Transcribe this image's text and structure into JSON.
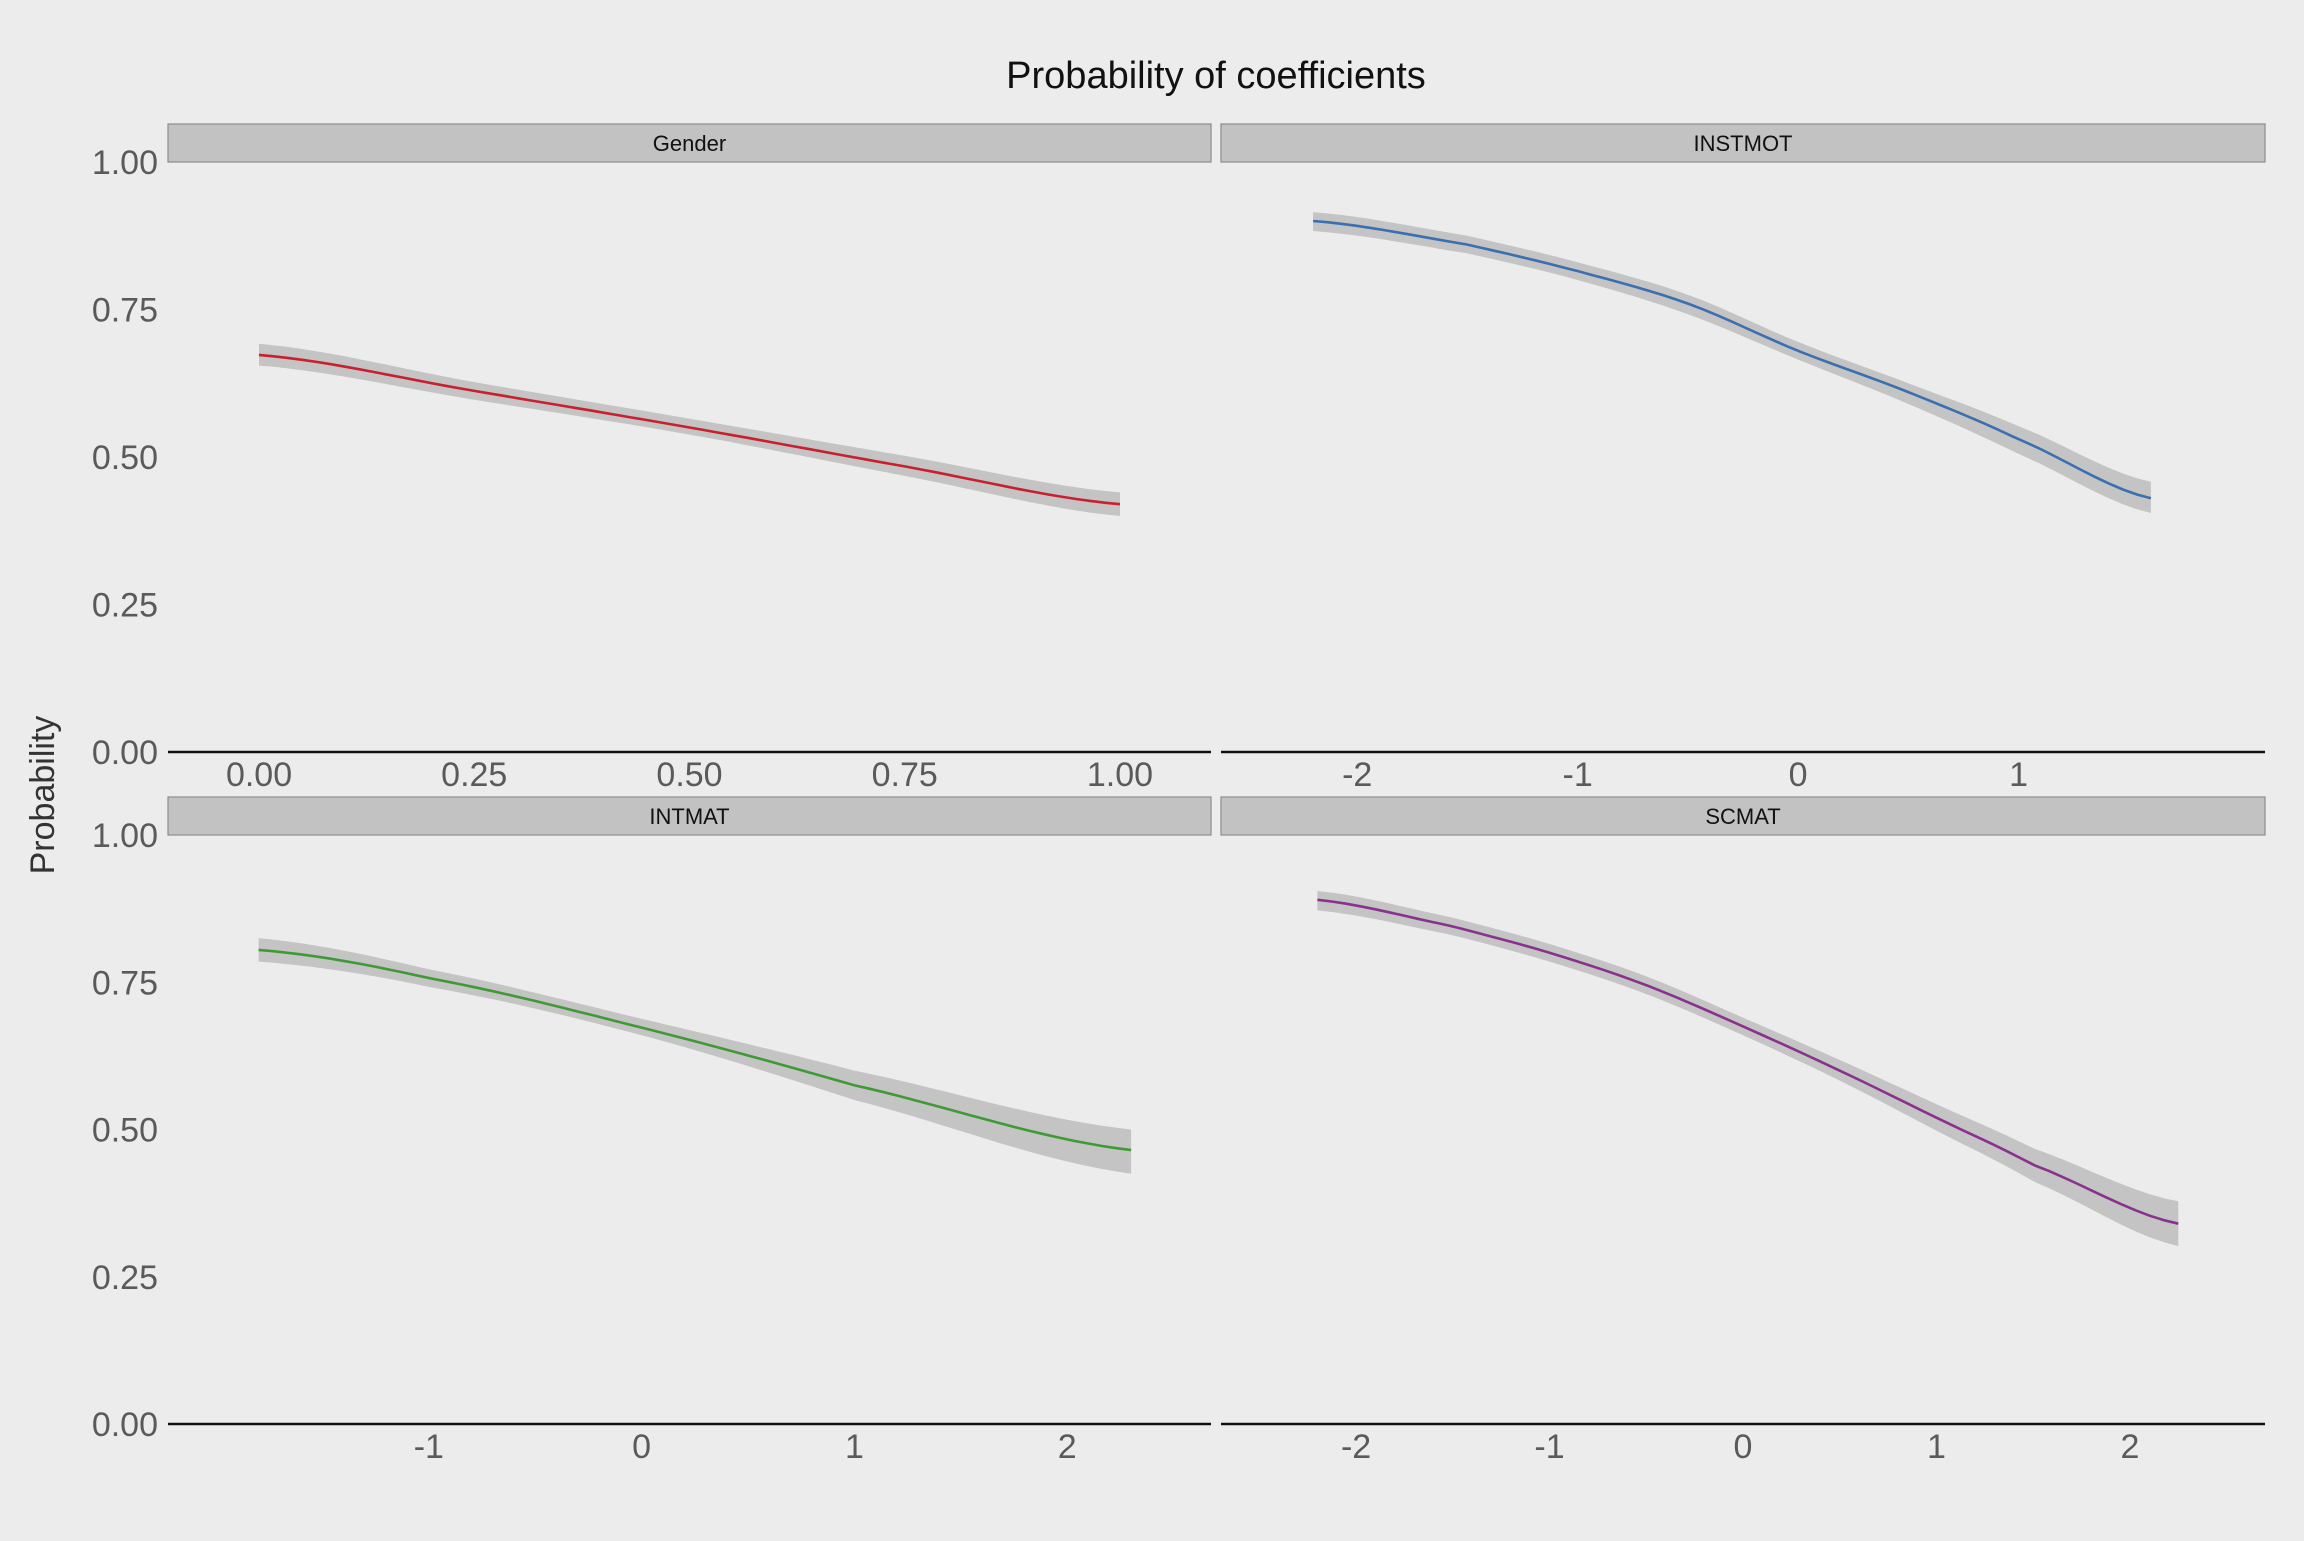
{
  "chart_data": {
    "type": "line",
    "title": "Probability of coefficients",
    "ylabel": "Probability",
    "xlabel": "",
    "ylim": [
      0,
      1
    ],
    "y_ticks": [
      "0.00",
      "0.25",
      "0.50",
      "0.75",
      "1.00"
    ],
    "y_tick_values": [
      0,
      0.25,
      0.5,
      0.75,
      1.0
    ],
    "grid": false,
    "legend": "none",
    "band_color": "#c4c4c4",
    "panels": [
      {
        "label": "Gender",
        "color": "#c8202c",
        "xlim": [
          -0.05,
          1.05
        ],
        "x_ticks": [
          "0.00",
          "0.25",
          "0.50",
          "0.75",
          "1.00"
        ],
        "x_tick_values": [
          0,
          0.25,
          0.5,
          0.75,
          1.0
        ],
        "x": [
          0,
          0.25,
          0.5,
          0.75,
          1.0
        ],
        "y": [
          0.673,
          0.612,
          0.55,
          0.484,
          0.42
        ],
        "lower": [
          0.655,
          0.597,
          0.538,
          0.468,
          0.4
        ],
        "upper": [
          0.692,
          0.627,
          0.565,
          0.502,
          0.44
        ]
      },
      {
        "label": "INSTMOT",
        "color": "#3a6fb0",
        "xlim": [
          -2.4,
          1.9
        ],
        "x_ticks": [
          "-2",
          "-1",
          "0",
          "1"
        ],
        "x_tick_values": [
          -2,
          -1,
          0,
          1
        ],
        "x": [
          -2.2,
          -1.5,
          -1.0,
          -0.5,
          0,
          0.5,
          1.0,
          1.6
        ],
        "y": [
          0.9,
          0.86,
          0.815,
          0.76,
          0.68,
          0.61,
          0.53,
          0.43
        ],
        "lower": [
          0.883,
          0.845,
          0.8,
          0.742,
          0.665,
          0.59,
          0.505,
          0.405
        ],
        "upper": [
          0.915,
          0.875,
          0.83,
          0.775,
          0.695,
          0.625,
          0.552,
          0.458
        ]
      },
      {
        "label": "INTMAT",
        "color": "#3f9a36",
        "xlim": [
          -2.0,
          2.45
        ],
        "x_ticks": [
          "-1",
          "0",
          "1",
          "2"
        ],
        "x_tick_values": [
          -1,
          0,
          1,
          2
        ],
        "x": [
          -1.8,
          -1.0,
          0,
          1.0,
          2.3
        ],
        "y": [
          0.805,
          0.757,
          0.673,
          0.575,
          0.465
        ],
        "lower": [
          0.785,
          0.742,
          0.66,
          0.55,
          0.425
        ],
        "upper": [
          0.825,
          0.772,
          0.688,
          0.6,
          0.5
        ]
      },
      {
        "label": "SCMAT",
        "color": "#8a318f",
        "xlim": [
          -2.45,
          2.45
        ],
        "x_ticks": [
          "-2",
          "-1",
          "0",
          "1",
          "2"
        ],
        "x_tick_values": [
          -2,
          -1,
          0,
          1,
          2
        ],
        "x": [
          -2.2,
          -1.5,
          -1.0,
          -0.5,
          0,
          0.5,
          1.0,
          1.5,
          2.25
        ],
        "y": [
          0.89,
          0.845,
          0.8,
          0.745,
          0.675,
          0.6,
          0.52,
          0.44,
          0.34
        ],
        "lower": [
          0.872,
          0.83,
          0.785,
          0.73,
          0.66,
          0.583,
          0.498,
          0.412,
          0.302
        ],
        "upper": [
          0.905,
          0.86,
          0.815,
          0.76,
          0.69,
          0.618,
          0.543,
          0.468,
          0.378
        ]
      }
    ]
  }
}
